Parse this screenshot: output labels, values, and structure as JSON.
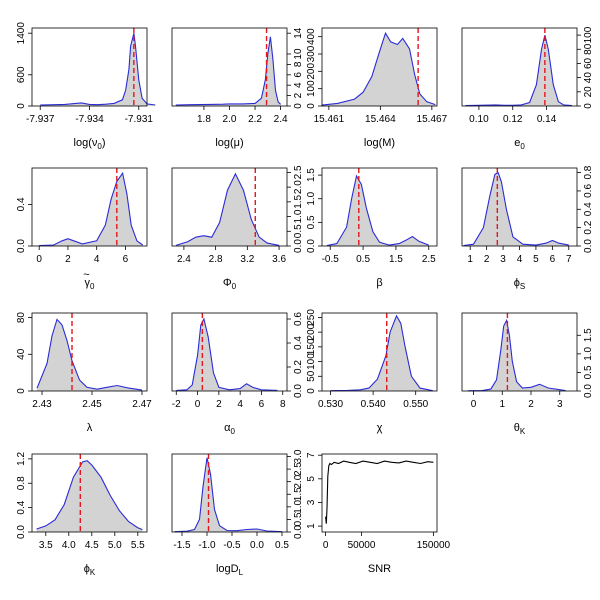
{
  "colors": {
    "density_line": "#2b2bd6",
    "density_fill": "#d3d3d3",
    "true_value": "#e8141b",
    "snr_line": "#000000"
  },
  "chart_data": [
    {
      "id": "log-nu0",
      "type": "area",
      "xlabel": "log(ν",
      "xlabel_sub": "0",
      "xlabel_suffix": ")",
      "xlim": [
        -7.9375,
        -7.9305
      ],
      "ylim": [
        0,
        1500
      ],
      "xticks": [
        "-7.937",
        "-7.934",
        "-7.931"
      ],
      "xtick_values": [
        -7.937,
        -7.934,
        -7.931
      ],
      "yticks": [
        "0",
        "600",
        "1400"
      ],
      "ytick_values": [
        0,
        600,
        1400
      ],
      "yaxis": "left",
      "truth": -7.9313,
      "grid": false,
      "x": [
        -7.937,
        -7.9355,
        -7.9345,
        -7.934,
        -7.9335,
        -7.933,
        -7.9325,
        -7.932,
        -7.9318,
        -7.9316,
        -7.9315,
        -7.9313,
        -7.9312,
        -7.931,
        -7.9308,
        -7.9305,
        -7.93
      ],
      "y": [
        20,
        30,
        60,
        30,
        25,
        35,
        50,
        120,
        300,
        700,
        1150,
        1400,
        1150,
        500,
        150,
        40,
        20
      ]
    },
    {
      "id": "log-mu",
      "type": "area",
      "xlabel": "log(μ)",
      "xlim": [
        1.55,
        2.45
      ],
      "ylim": [
        0,
        15
      ],
      "xticks": [
        "1.8",
        "2.0",
        "2.2",
        "2.4"
      ],
      "xtick_values": [
        1.8,
        2.0,
        2.2,
        2.4
      ],
      "yticks": [
        "0",
        "2",
        "4",
        "6",
        "8",
        "10",
        "14"
      ],
      "ytick_values": [
        0,
        2,
        4,
        6,
        8,
        10,
        14
      ],
      "yaxis": "right",
      "truth": 2.29,
      "grid": false,
      "x": [
        1.58,
        1.7,
        1.85,
        1.95,
        2.0,
        2.1,
        2.2,
        2.25,
        2.28,
        2.3,
        2.32,
        2.34,
        2.36,
        2.38,
        2.4
      ],
      "y": [
        0.2,
        0.25,
        0.3,
        0.35,
        0.4,
        0.4,
        0.5,
        1.5,
        5,
        10,
        13.3,
        9,
        3,
        0.8,
        0.3
      ]
    },
    {
      "id": "log-M",
      "type": "area",
      "xlabel": "log(M)",
      "xlim": [
        15.4606,
        15.4673
      ],
      "ylim": [
        0,
        450
      ],
      "xticks": [
        "15.461",
        "15.464",
        "15.467"
      ],
      "xtick_values": [
        15.461,
        15.464,
        15.467
      ],
      "yticks": [
        "0",
        "100",
        "200",
        "300",
        "400"
      ],
      "ytick_values": [
        0,
        100,
        200,
        300,
        400
      ],
      "yaxis": "left",
      "truth": 15.4662,
      "grid": false,
      "x": [
        15.4606,
        15.4615,
        15.4625,
        15.463,
        15.4635,
        15.464,
        15.4643,
        15.4646,
        15.465,
        15.4653,
        15.4657,
        15.466,
        15.4663,
        15.4667,
        15.4672
      ],
      "y": [
        5,
        15,
        40,
        80,
        170,
        330,
        420,
        370,
        355,
        390,
        330,
        180,
        70,
        25,
        8
      ]
    },
    {
      "id": "e0",
      "type": "area",
      "xlabel": "e",
      "xlabel_sub": "0",
      "xlim": [
        0.09,
        0.158
      ],
      "ylim": [
        0,
        110
      ],
      "xticks": [
        "0.10",
        "0.12",
        "0.14"
      ],
      "xtick_values": [
        0.1,
        0.12,
        0.14
      ],
      "yticks": [
        "0",
        "20",
        "40",
        "60",
        "80",
        "100"
      ],
      "ytick_values": [
        0,
        20,
        40,
        60,
        80,
        100
      ],
      "yaxis": "right",
      "truth": 0.139,
      "grid": false,
      "x": [
        0.092,
        0.1,
        0.11,
        0.115,
        0.12,
        0.125,
        0.13,
        0.134,
        0.137,
        0.139,
        0.141,
        0.144,
        0.147,
        0.15,
        0.155
      ],
      "y": [
        0.5,
        1,
        1.5,
        1,
        1,
        1.5,
        5,
        30,
        80,
        100,
        80,
        30,
        6,
        1.5,
        0.5
      ]
    },
    {
      "id": "gamma0",
      "type": "area",
      "xlabel": "γ",
      "xlabel_sub": "0",
      "xlim": [
        -0.5,
        7.5
      ],
      "ylim": [
        0,
        0.75
      ],
      "xticks": [
        "0",
        "2",
        "4",
        "6"
      ],
      "xtick_values": [
        0,
        2,
        4,
        6
      ],
      "yticks": [
        "0.0",
        "0.4"
      ],
      "ytick_values": [
        0,
        0.4
      ],
      "yaxis": "left",
      "truth": 5.4,
      "grid": false,
      "x": [
        0,
        1,
        1.6,
        2,
        2.4,
        3,
        4,
        4.6,
        5,
        5.4,
        5.8,
        6.1,
        6.4,
        6.8,
        7.2
      ],
      "y": [
        0.005,
        0.01,
        0.05,
        0.07,
        0.05,
        0.02,
        0.05,
        0.2,
        0.45,
        0.62,
        0.7,
        0.5,
        0.2,
        0.05,
        0.01
      ]
    },
    {
      "id": "phi0",
      "type": "area",
      "xlabel": "Φ",
      "xlabel_sub": "0",
      "xlim": [
        2.25,
        3.7
      ],
      "ylim": [
        0,
        2.65
      ],
      "xticks": [
        "2.4",
        "2.8",
        "3.2",
        "3.6"
      ],
      "xtick_values": [
        2.4,
        2.8,
        3.2,
        3.6
      ],
      "yticks": [
        "0.0",
        "0.5",
        "1.0",
        "1.5",
        "2.0",
        "2.5"
      ],
      "ytick_values": [
        0,
        0.5,
        1,
        1.5,
        2,
        2.5
      ],
      "yaxis": "right",
      "truth": 3.3,
      "grid": false,
      "x": [
        2.3,
        2.45,
        2.55,
        2.65,
        2.75,
        2.85,
        2.95,
        3.05,
        3.15,
        3.25,
        3.35,
        3.45,
        3.6
      ],
      "y": [
        0.02,
        0.15,
        0.3,
        0.35,
        0.3,
        0.8,
        1.9,
        2.45,
        1.9,
        0.9,
        0.3,
        0.1,
        0.02
      ]
    },
    {
      "id": "beta",
      "type": "area",
      "xlabel": "β",
      "xlim": [
        -0.75,
        2.75
      ],
      "ylim": [
        0,
        1.65
      ],
      "xticks": [
        "-0.5",
        "0.5",
        "1.5",
        "2.5"
      ],
      "xtick_values": [
        -0.5,
        0.5,
        1.5,
        2.5
      ],
      "yticks": [
        "0.0",
        "0.5",
        "1.0",
        "1.5"
      ],
      "ytick_values": [
        0,
        0.5,
        1,
        1.5
      ],
      "yaxis": "left",
      "truth": 0.37,
      "grid": false,
      "x": [
        -0.6,
        -0.3,
        0,
        0.15,
        0.3,
        0.45,
        0.6,
        0.8,
        1.0,
        1.3,
        1.6,
        1.8,
        2.0,
        2.2,
        2.5
      ],
      "y": [
        0.01,
        0.05,
        0.4,
        1.0,
        1.48,
        1.3,
        0.8,
        0.3,
        0.08,
        0.02,
        0.05,
        0.12,
        0.2,
        0.1,
        0.02
      ]
    },
    {
      "id": "phiS",
      "type": "area",
      "xlabel": "ϕ",
      "xlabel_sub": "S",
      "xlim": [
        0.5,
        7.5
      ],
      "ylim": [
        0,
        0.85
      ],
      "xticks": [
        "1",
        "2",
        "3",
        "4",
        "5",
        "6",
        "7"
      ],
      "xtick_values": [
        1,
        2,
        3,
        4,
        5,
        6,
        7
      ],
      "yticks": [
        "0.0",
        "0.2",
        "0.4",
        "0.6",
        "0.8"
      ],
      "ytick_values": [
        0,
        0.2,
        0.4,
        0.6,
        0.8
      ],
      "yaxis": "right",
      "truth": 2.65,
      "grid": false,
      "x": [
        0.6,
        1.2,
        1.8,
        2.2,
        2.5,
        2.7,
        2.9,
        3.2,
        3.6,
        4.2,
        5,
        5.6,
        6,
        6.4,
        7
      ],
      "y": [
        0.005,
        0.02,
        0.2,
        0.55,
        0.78,
        0.8,
        0.7,
        0.4,
        0.1,
        0.02,
        0.01,
        0.03,
        0.06,
        0.03,
        0.01
      ]
    },
    {
      "id": "lambda",
      "type": "area",
      "xlabel": "λ",
      "xlim": [
        2.426,
        2.472
      ],
      "ylim": [
        0,
        85
      ],
      "xticks": [
        "2.43",
        "2.45",
        "2.47"
      ],
      "xtick_values": [
        2.43,
        2.45,
        2.47
      ],
      "yticks": [
        "0",
        "40",
        "80"
      ],
      "ytick_values": [
        0,
        40,
        80
      ],
      "yaxis": "left",
      "truth": 2.442,
      "grid": false,
      "x": [
        2.428,
        2.432,
        2.434,
        2.436,
        2.438,
        2.44,
        2.442,
        2.445,
        2.448,
        2.452,
        2.456,
        2.46,
        2.465,
        2.47
      ],
      "y": [
        3,
        30,
        60,
        78,
        72,
        55,
        33,
        12,
        4,
        2,
        4,
        6,
        3,
        1
      ]
    },
    {
      "id": "alpha0",
      "type": "area",
      "xlabel": "α",
      "xlabel_sub": "0",
      "xlim": [
        -2.4,
        8.4
      ],
      "ylim": [
        0,
        0.65
      ],
      "xticks": [
        "-2",
        "0",
        "2",
        "4",
        "6",
        "8"
      ],
      "xtick_values": [
        -2,
        0,
        2,
        4,
        6,
        8
      ],
      "yticks": [
        "0.0",
        "0.2",
        "0.4",
        "0.6"
      ],
      "ytick_values": [
        0,
        0.2,
        0.4,
        0.6
      ],
      "yaxis": "right",
      "truth": 0.45,
      "grid": false,
      "x": [
        -2,
        -1,
        -0.5,
        0,
        0.3,
        0.6,
        1.0,
        1.5,
        2,
        3,
        4,
        4.6,
        5.2,
        6,
        7.5
      ],
      "y": [
        0.005,
        0.01,
        0.05,
        0.3,
        0.55,
        0.6,
        0.45,
        0.15,
        0.03,
        0.01,
        0.02,
        0.06,
        0.03,
        0.01,
        0.005
      ]
    },
    {
      "id": "chi",
      "type": "area",
      "xlabel": "χ",
      "xlim": [
        0.528,
        0.555
      ],
      "ylim": [
        0,
        265
      ],
      "xticks": [
        "0.530",
        "0.540",
        "0.550"
      ],
      "xtick_values": [
        0.53,
        0.54,
        0.55
      ],
      "yticks": [
        "0",
        "50",
        "100",
        "150",
        "200",
        "250"
      ],
      "ytick_values": [
        0,
        50,
        100,
        150,
        200,
        250
      ],
      "yaxis": "left",
      "truth": 0.5432,
      "grid": false,
      "x": [
        0.53,
        0.534,
        0.537,
        0.539,
        0.541,
        0.543,
        0.544,
        0.5455,
        0.5465,
        0.5475,
        0.549,
        0.551,
        0.554
      ],
      "y": [
        1,
        2,
        4,
        10,
        40,
        120,
        200,
        255,
        230,
        150,
        50,
        10,
        1
      ]
    },
    {
      "id": "thetaK",
      "type": "area",
      "xlabel": "θ",
      "xlabel_sub": "K",
      "xlim": [
        -0.4,
        3.6
      ],
      "ylim": [
        0,
        2.1
      ],
      "xticks": [
        "0",
        "1",
        "2",
        "3"
      ],
      "xtick_values": [
        0,
        1,
        2,
        3
      ],
      "yticks": [
        "0.0",
        "0.5",
        "1.0",
        "1.5"
      ],
      "ytick_values": [
        0,
        0.5,
        1,
        1.5
      ],
      "yaxis": "right",
      "truth": 1.18,
      "grid": false,
      "x": [
        -0.2,
        0.3,
        0.6,
        0.8,
        0.95,
        1.05,
        1.15,
        1.25,
        1.35,
        1.5,
        1.7,
        2.0,
        2.3,
        2.6,
        3.2
      ],
      "y": [
        0.005,
        0.01,
        0.05,
        0.3,
        1.1,
        1.75,
        1.9,
        1.5,
        0.8,
        0.25,
        0.08,
        0.1,
        0.18,
        0.08,
        0.01
      ]
    },
    {
      "id": "phiK",
      "type": "area",
      "xlabel": "ϕ",
      "xlabel_sub": "K",
      "xlim": [
        3.2,
        5.7
      ],
      "ylim": [
        0,
        1.28
      ],
      "xticks": [
        "3.5",
        "4.0",
        "4.5",
        "5.0",
        "5.5"
      ],
      "xtick_values": [
        3.5,
        4.0,
        4.5,
        5.0,
        5.5
      ],
      "yticks": [
        "0.0",
        "0.4",
        "0.8",
        "1.2"
      ],
      "ytick_values": [
        0,
        0.4,
        0.8,
        1.2
      ],
      "yaxis": "left",
      "truth": 4.25,
      "grid": false,
      "x": [
        3.3,
        3.5,
        3.7,
        3.9,
        4.1,
        4.3,
        4.4,
        4.5,
        4.7,
        4.9,
        5.1,
        5.3,
        5.5,
        5.6
      ],
      "y": [
        0.05,
        0.1,
        0.2,
        0.45,
        0.9,
        1.15,
        1.17,
        1.1,
        0.9,
        0.6,
        0.35,
        0.17,
        0.07,
        0.04
      ]
    },
    {
      "id": "logDL",
      "type": "area",
      "xlabel": "logD",
      "xlabel_sub": "L",
      "xlim": [
        -1.7,
        0.6
      ],
      "ylim": [
        0,
        3.1
      ],
      "xticks": [
        "-1.5",
        "-1.0",
        "-0.5",
        "0.0",
        "0.5"
      ],
      "xtick_values": [
        -1.5,
        -1.0,
        -0.5,
        0,
        0.5
      ],
      "yticks": [
        "0.0",
        "0.5",
        "1.0",
        "1.5",
        "2.0",
        "2.5",
        "3.0"
      ],
      "ytick_values": [
        0,
        0.5,
        1,
        1.5,
        2,
        2.5,
        3
      ],
      "yaxis": "right",
      "truth": -0.97,
      "grid": false,
      "x": [
        -1.65,
        -1.4,
        -1.25,
        -1.15,
        -1.08,
        -1.0,
        -0.93,
        -0.85,
        -0.75,
        -0.6,
        -0.4,
        -0.2,
        0,
        0.2,
        0.5
      ],
      "y": [
        0.01,
        0.03,
        0.1,
        0.5,
        1.8,
        2.95,
        2.3,
        0.9,
        0.25,
        0.06,
        0.05,
        0.1,
        0.12,
        0.04,
        0.01
      ]
    },
    {
      "id": "snr",
      "type": "line",
      "xlabel": "SNR",
      "xlim": [
        -5000,
        155000
      ],
      "ylim": [
        0.5,
        7.1
      ],
      "xticks": [
        "0",
        "50000",
        "150000"
      ],
      "xtick_values": [
        0,
        50000,
        150000
      ],
      "yticks": [
        "1",
        "3",
        "5",
        "7"
      ],
      "ytick_values": [
        1,
        3,
        5,
        7
      ],
      "yaxis": "left",
      "grid": false,
      "x": [
        0,
        1000,
        2000,
        3000,
        4500,
        6000,
        8000,
        12000,
        18000,
        25000,
        33000,
        42000,
        52000,
        62000,
        72000,
        82000,
        92000,
        102000,
        112000,
        122000,
        132000,
        142000,
        150000
      ],
      "y": [
        1.8,
        1.2,
        2.5,
        5.2,
        6.1,
        6.3,
        6.2,
        6.4,
        6.3,
        6.5,
        6.4,
        6.3,
        6.5,
        6.4,
        6.3,
        6.5,
        6.4,
        6.35,
        6.5,
        6.4,
        6.3,
        6.45,
        6.4
      ]
    }
  ]
}
